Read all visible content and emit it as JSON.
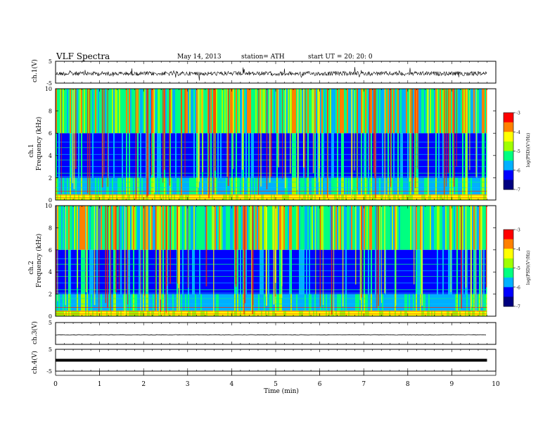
{
  "header": {
    "title": "VLF  Spectra",
    "date": "May 14, 2013",
    "station": "station= ATH",
    "start": "start  UT  =    20: 20: 0"
  },
  "chart_data": [
    {
      "type": "line",
      "name": "ch1-waveform",
      "ylabel": "ch.1(V)",
      "ylim": [
        -5,
        5
      ],
      "yticks": [
        "5",
        "-5"
      ],
      "xlim": [
        0,
        10
      ]
    },
    {
      "type": "heatmap",
      "name": "ch1-spectrogram",
      "ylabel_channel": "ch.1",
      "ylabel": "Frequency  (kHz)",
      "ylim": [
        0,
        10
      ],
      "yticks": [
        "0",
        "2",
        "4",
        "6",
        "8",
        "10"
      ],
      "xlim": [
        0,
        10
      ],
      "colorbar": {
        "label": "log(PSD)(V²/Hz)",
        "ticks": [
          "-3",
          "-4",
          "-5",
          "-6",
          "-7"
        ],
        "range": [
          -7,
          -3
        ]
      }
    },
    {
      "type": "heatmap",
      "name": "ch2-spectrogram",
      "ylabel_channel": "ch.2",
      "ylabel": "Frequency  (kHz)",
      "ylim": [
        0,
        10
      ],
      "yticks": [
        "0",
        "2",
        "4",
        "6",
        "8",
        "10"
      ],
      "xlim": [
        0,
        10
      ],
      "colorbar": {
        "label": "log(PSD)(V²/Hz)",
        "ticks": [
          "-3",
          "-4",
          "-5",
          "-6",
          "-7"
        ],
        "range": [
          -7,
          -3
        ]
      }
    },
    {
      "type": "line",
      "name": "ch3-waveform",
      "ylabel": "ch.3(V)",
      "ylim": [
        -5,
        5
      ],
      "yticks": [
        "5"
      ],
      "xlim": [
        0,
        10
      ]
    },
    {
      "type": "line",
      "name": "ch4-waveform",
      "ylabel": "ch.4(V)",
      "ylim": [
        -5,
        5
      ],
      "yticks": [
        "5",
        "-5"
      ],
      "xlim": [
        0,
        10
      ]
    }
  ],
  "xaxis": {
    "label": "Time  (min)",
    "ticks": [
      "0",
      "1",
      "2",
      "3",
      "4",
      "5",
      "6",
      "7",
      "8",
      "9",
      "10"
    ],
    "data_end": 9.8
  },
  "colors": {
    "colormap": [
      "#000080",
      "#0000ff",
      "#00b0ff",
      "#00ff80",
      "#a0ff00",
      "#ffff00",
      "#ff8000",
      "#ff0000",
      "#ffffff"
    ]
  }
}
